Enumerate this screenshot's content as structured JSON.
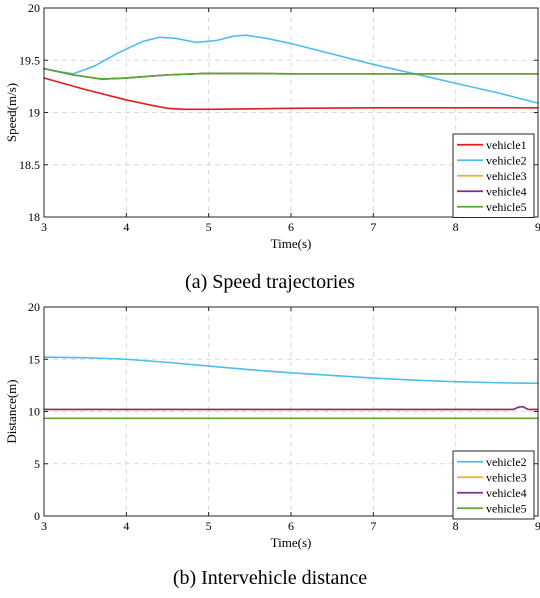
{
  "chart_data": [
    {
      "type": "line",
      "caption": "(a) Speed trajectories",
      "xlabel": "Time(s)",
      "ylabel": "Speed(m/s)",
      "xlim": [
        3,
        9
      ],
      "ylim": [
        18,
        20
      ],
      "xticks": [
        3,
        4,
        5,
        6,
        7,
        8,
        9
      ],
      "yticks": [
        18,
        18.5,
        19,
        19.5,
        20
      ],
      "ytick_labels": [
        "18",
        "18.5",
        "19",
        "19.5",
        "20"
      ],
      "grid": true,
      "legend_position": "bottom-right",
      "series": [
        {
          "name": "vehicle1",
          "color": "#e41a1c",
          "x": [
            3,
            3.5,
            4,
            4.3,
            4.5,
            4.7,
            5,
            6,
            7,
            8,
            9
          ],
          "y": [
            19.33,
            19.22,
            19.12,
            19.07,
            19.04,
            19.03,
            19.03,
            19.04,
            19.045,
            19.045,
            19.045
          ]
        },
        {
          "name": "vehicle2",
          "color": "#4dbeee",
          "x": [
            3,
            3.2,
            3.35,
            3.6,
            3.9,
            4.2,
            4.4,
            4.6,
            4.85,
            5.1,
            5.3,
            5.45,
            5.7,
            6,
            6.5,
            7,
            7.5,
            8,
            8.5,
            9
          ],
          "y": [
            19.42,
            19.39,
            19.37,
            19.44,
            19.57,
            19.68,
            19.72,
            19.71,
            19.67,
            19.69,
            19.73,
            19.74,
            19.71,
            19.66,
            19.56,
            19.46,
            19.37,
            19.28,
            19.19,
            19.09
          ]
        },
        {
          "name": "vehicle3",
          "color": "#edb120",
          "x": [
            3,
            3.35,
            3.7,
            4,
            4.5,
            5,
            6,
            7,
            8,
            9
          ],
          "y": [
            19.42,
            19.36,
            19.32,
            19.33,
            19.36,
            19.375,
            19.37,
            19.37,
            19.37,
            19.37
          ]
        },
        {
          "name": "vehicle4",
          "color": "#7e2f8e",
          "x": [
            3,
            3.35,
            3.7,
            4,
            4.5,
            5,
            6,
            7,
            8,
            9
          ],
          "y": [
            19.42,
            19.36,
            19.32,
            19.33,
            19.36,
            19.375,
            19.37,
            19.37,
            19.37,
            19.37
          ]
        },
        {
          "name": "vehicle5",
          "color": "#5aa832",
          "x": [
            3,
            3.35,
            3.7,
            4,
            4.5,
            5,
            6,
            7,
            8,
            9
          ],
          "y": [
            19.42,
            19.36,
            19.32,
            19.33,
            19.36,
            19.375,
            19.37,
            19.37,
            19.37,
            19.37
          ]
        }
      ]
    },
    {
      "type": "line",
      "caption": "(b) Intervehicle distance",
      "xlabel": "Time(s)",
      "ylabel": "Distance(m)",
      "xlim": [
        3,
        9
      ],
      "ylim": [
        0,
        20
      ],
      "xticks": [
        3,
        4,
        5,
        6,
        7,
        8,
        9
      ],
      "yticks": [
        0,
        5,
        10,
        15,
        20
      ],
      "ytick_labels": [
        "0",
        "5",
        "10",
        "15",
        "20"
      ],
      "grid": true,
      "legend_position": "bottom-right",
      "series": [
        {
          "name": "vehicle2",
          "color": "#4dbeee",
          "x": [
            3,
            3.5,
            4,
            4.5,
            5,
            5.5,
            6,
            6.5,
            7,
            7.5,
            8,
            8.5,
            9
          ],
          "y": [
            15.2,
            15.15,
            15.0,
            14.7,
            14.35,
            14.0,
            13.7,
            13.45,
            13.2,
            13.0,
            12.85,
            12.75,
            12.7
          ]
        },
        {
          "name": "vehicle3",
          "color": "#edb120",
          "x": [
            3,
            5,
            7,
            8.7,
            8.78,
            8.82,
            8.88,
            9
          ],
          "y": [
            10.2,
            10.2,
            10.2,
            10.2,
            10.45,
            10.45,
            10.2,
            10.2
          ]
        },
        {
          "name": "vehicle4",
          "color": "#7e2f8e",
          "x": [
            3,
            5,
            7,
            8.7,
            8.78,
            8.82,
            8.88,
            9
          ],
          "y": [
            10.2,
            10.2,
            10.2,
            10.2,
            10.45,
            10.45,
            10.2,
            10.2
          ]
        },
        {
          "name": "vehicle5",
          "color": "#5aa832",
          "x": [
            3,
            5,
            7,
            9
          ],
          "y": [
            9.35,
            9.35,
            9.35,
            9.35
          ]
        }
      ]
    }
  ]
}
